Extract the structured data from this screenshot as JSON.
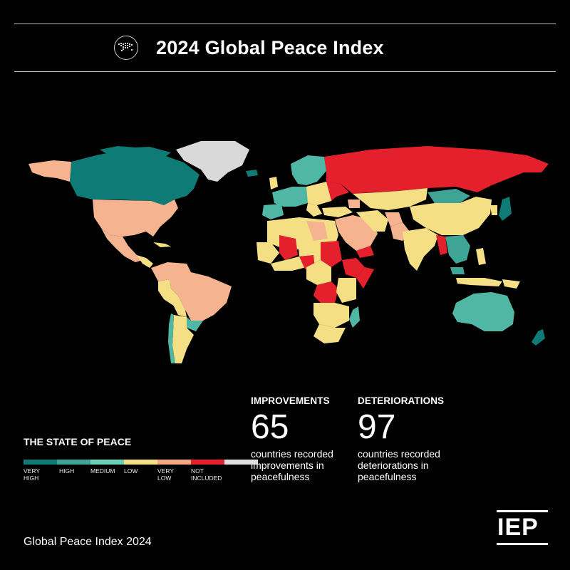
{
  "header": {
    "title": "2024 Global Peace Index",
    "icon": "world-map-icon"
  },
  "legend": {
    "title": "THE STATE OF PEACE",
    "items": [
      {
        "label": "VERY\nHIGH",
        "color": "#0e7b77"
      },
      {
        "label": "HIGH",
        "color": "#3ea596"
      },
      {
        "label": "MEDIUM",
        "color": "#6ad0b6"
      },
      {
        "label": "LOW",
        "color": "#f5df85"
      },
      {
        "label": "VERY\nLOW",
        "color": "#f5a77e"
      },
      {
        "label": "NOT\nINCLUDED",
        "color": "#e3202b"
      }
    ],
    "segments": [
      "#0e7b77",
      "#3ea596",
      "#6ad0b6",
      "#f5df85",
      "#f5a77e",
      "#e3202b",
      "#e0e0e0"
    ]
  },
  "stats": {
    "improvements": {
      "head": "IMPROVEMENTS",
      "value": "65",
      "desc": "countries recorded improvements in peacefulness"
    },
    "deteriorations": {
      "head": "DETERIORATIONS",
      "value": "97",
      "desc": "countries recorded deteriorations in peacefulness"
    }
  },
  "footer": {
    "name": "Global Peace Index",
    "year": "2024",
    "logo": "IEP"
  },
  "colors": {
    "very_high": "#0e7b77",
    "high": "#4fb7a4",
    "medium": "#f5df85",
    "low": "#f5b48f",
    "very_low": "#e3202b",
    "not_included": "#d9d9d9"
  }
}
